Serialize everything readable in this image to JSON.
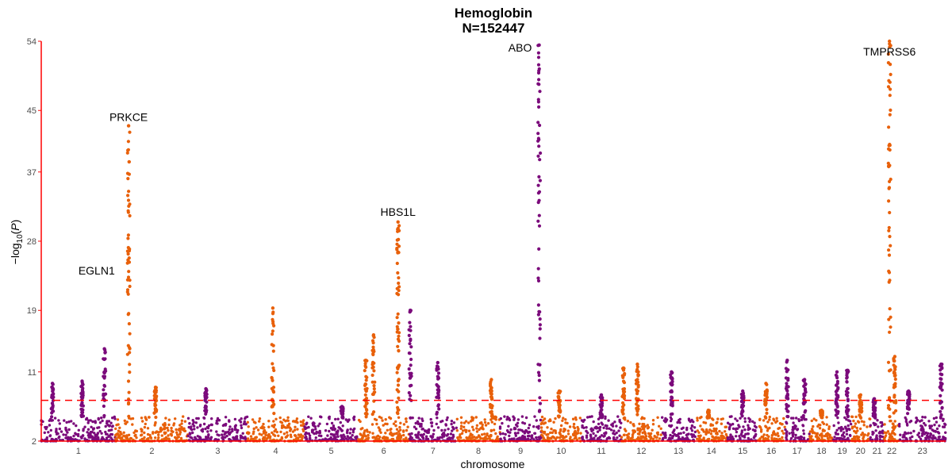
{
  "chart_data": {
    "type": "scatter",
    "title": "Hemoglobin",
    "subtitle": "N=152447",
    "xlabel": "chromosome",
    "ylabel": "-log10(P)",
    "ylim": [
      2,
      54
    ],
    "yticks": [
      2,
      11,
      19,
      28,
      37,
      45,
      54
    ],
    "significance_threshold": 7.3,
    "colors": {
      "odd": "#7b0a7b",
      "even": "#e8600a",
      "threshold": "#ff0000",
      "axis": "#ff0000"
    },
    "chromosomes": [
      {
        "label": "1",
        "length": 249,
        "peaks": [
          [
            0.15,
            9.5
          ],
          [
            0.55,
            9.8
          ],
          [
            0.85,
            14
          ]
        ]
      },
      {
        "label": "2",
        "length": 243,
        "peaks": [
          [
            0.18,
            43
          ],
          [
            0.55,
            9.0
          ]
        ]
      },
      {
        "label": "3",
        "length": 198,
        "peaks": [
          [
            0.3,
            8.8
          ]
        ]
      },
      {
        "label": "4",
        "length": 191,
        "peaks": [
          [
            0.45,
            19.3
          ]
        ]
      },
      {
        "label": "5",
        "length": 181,
        "peaks": [
          [
            0.7,
            6.5
          ]
        ]
      },
      {
        "label": "6",
        "length": 171,
        "peaks": [
          [
            0.15,
            12.5
          ],
          [
            0.3,
            15.8
          ],
          [
            0.78,
            30.5
          ]
        ]
      },
      {
        "label": "7",
        "length": 159,
        "peaks": [
          [
            0.02,
            19
          ],
          [
            0.6,
            12.2
          ]
        ]
      },
      {
        "label": "8",
        "length": 145,
        "peaks": [
          [
            0.8,
            10.0
          ]
        ]
      },
      {
        "label": "9",
        "length": 138,
        "peaks": [
          [
            0.95,
            53.5
          ]
        ]
      },
      {
        "label": "10",
        "length": 134,
        "peaks": [
          [
            0.45,
            8.5
          ]
        ]
      },
      {
        "label": "11",
        "length": 135,
        "peaks": [
          [
            0.5,
            8.0
          ]
        ]
      },
      {
        "label": "12",
        "length": 133,
        "peaks": [
          [
            0.05,
            11.5
          ],
          [
            0.4,
            12.0
          ]
        ]
      },
      {
        "label": "13",
        "length": 115,
        "peaks": [
          [
            0.3,
            11.0
          ]
        ]
      },
      {
        "label": "14",
        "length": 107,
        "peaks": [
          [
            0.4,
            6.0
          ]
        ]
      },
      {
        "label": "15",
        "length": 102,
        "peaks": [
          [
            0.5,
            8.5
          ]
        ]
      },
      {
        "label": "16",
        "length": 90,
        "peaks": [
          [
            0.3,
            9.5
          ]
        ]
      },
      {
        "label": "17",
        "length": 83,
        "peaks": [
          [
            0.1,
            12.5
          ],
          [
            0.8,
            10.0
          ]
        ]
      },
      {
        "label": "18",
        "length": 80,
        "peaks": [
          [
            0.5,
            6.0
          ]
        ]
      },
      {
        "label": "19",
        "length": 59,
        "peaks": [
          [
            0.2,
            11.0
          ],
          [
            0.8,
            11.2
          ]
        ]
      },
      {
        "label": "20",
        "length": 64,
        "peaks": [
          [
            0.5,
            8.0
          ]
        ]
      },
      {
        "label": "21",
        "length": 47,
        "peaks": [
          [
            0.3,
            7.5
          ]
        ]
      },
      {
        "label": "22",
        "length": 51,
        "peaks": [
          [
            0.35,
            54
          ],
          [
            0.7,
            13
          ]
        ]
      },
      {
        "label": "23",
        "length": 155,
        "peaks": [
          [
            0.2,
            8.5
          ],
          [
            0.9,
            12.0
          ]
        ]
      }
    ],
    "annotations": [
      {
        "label": "EGLN1",
        "chrom": "1",
        "pos": 0.98,
        "y": 25.5
      },
      {
        "label": "PRKCE",
        "chrom": "2",
        "pos": 0.18,
        "y": 43
      },
      {
        "label": "HBS1L",
        "chrom": "6",
        "pos": 0.78,
        "y": 30.5
      },
      {
        "label": "ABO",
        "chrom": "9",
        "pos": 0.95,
        "y": 53.5
      },
      {
        "label": "TMPRSS6",
        "chrom": "22",
        "pos": 0.35,
        "y": 54
      }
    ]
  }
}
